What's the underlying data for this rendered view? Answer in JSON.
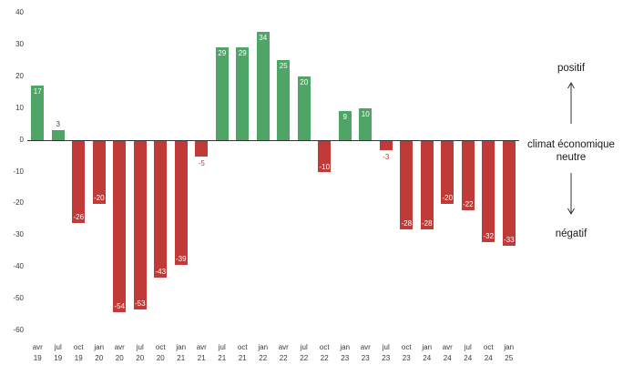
{
  "chart_data": {
    "type": "bar",
    "title": "",
    "xlabel": "",
    "ylabel": "",
    "ylim": [
      -60,
      40
    ],
    "yticks": [
      40,
      30,
      20,
      10,
      0,
      -10,
      -20,
      -30,
      -40,
      -50,
      -60
    ],
    "grid": false,
    "legend": "none",
    "categories": [
      [
        "avr",
        "19"
      ],
      [
        "jul",
        "19"
      ],
      [
        "oct",
        "19"
      ],
      [
        "jan",
        "20"
      ],
      [
        "avr",
        "20"
      ],
      [
        "jul",
        "20"
      ],
      [
        "oct",
        "20"
      ],
      [
        "jan",
        "21"
      ],
      [
        "avr",
        "21"
      ],
      [
        "jul",
        "21"
      ],
      [
        "oct",
        "21"
      ],
      [
        "jan",
        "22"
      ],
      [
        "avr",
        "22"
      ],
      [
        "jul",
        "22"
      ],
      [
        "oct",
        "22"
      ],
      [
        "jan",
        "23"
      ],
      [
        "avr",
        "23"
      ],
      [
        "jul",
        "23"
      ],
      [
        "oct",
        "23"
      ],
      [
        "jan",
        "24"
      ],
      [
        "avr",
        "24"
      ],
      [
        "jul",
        "24"
      ],
      [
        "oct",
        "24"
      ],
      [
        "jan",
        "25"
      ]
    ],
    "values": [
      17,
      3,
      -26,
      -20,
      -54,
      -53,
      -43,
      -39,
      -5,
      29,
      29,
      34,
      25,
      20,
      -10,
      9,
      10,
      -3,
      -28,
      -28,
      -20,
      -22,
      -32,
      -33
    ],
    "colors": {
      "positive": "#4fa566",
      "negative": "#c03a38",
      "axis": "#333333",
      "tick_text": "#3a3a3a",
      "inside_label": "#ffffff",
      "outside_positive_label": "#444444"
    },
    "annotations": {
      "positive": "positif",
      "neutral_line1": "climat économique",
      "neutral_line2": "neutre",
      "negative": "négatif"
    }
  }
}
